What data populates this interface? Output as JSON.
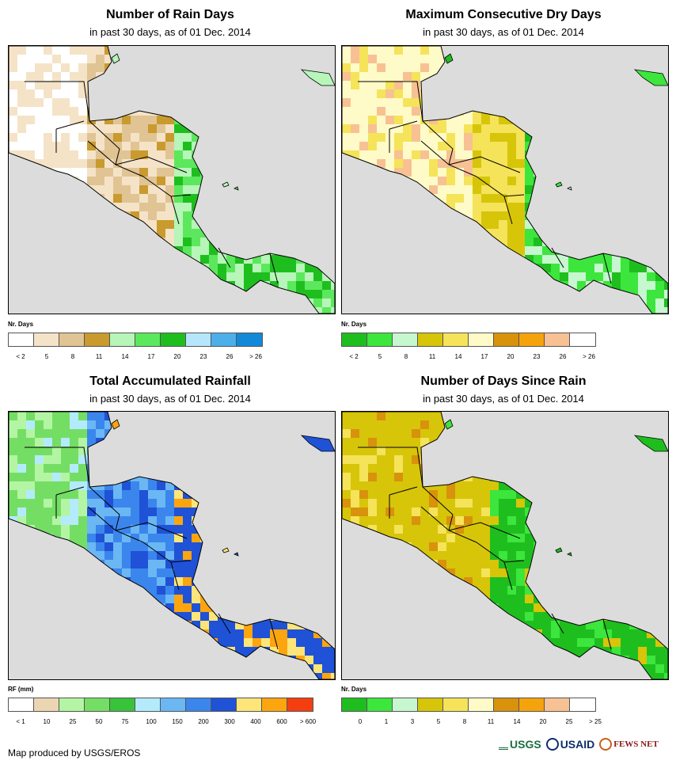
{
  "panels": [
    {
      "title": "Number of Rain Days",
      "subtitle": "in past 30 days, as of 01 Dec. 2014",
      "legend_title": "Nr. Days",
      "swatches": [
        "#ffffff",
        "#f5e3c8",
        "#e1c494",
        "#c99a2e",
        "#b7f5b9",
        "#5ce85c",
        "#1fbe1f",
        "#b6e6fb",
        "#4dafe9",
        "#1189d8"
      ],
      "labels": [
        "< 2",
        "5",
        "8",
        "11",
        "14",
        "17",
        "20",
        "23",
        "26",
        "> 26"
      ],
      "scheme": "rain_days"
    },
    {
      "title": "Maximum Consecutive Dry Days",
      "subtitle": "in past 30 days, as of 01 Dec. 2014",
      "legend_title": "Nr. Days",
      "swatches": [
        "#1fbe1f",
        "#3ce63c",
        "#c6f7cf",
        "#d7c50a",
        "#f5e35a",
        "#fffbc8",
        "#d8920c",
        "#f5a30c",
        "#f7c194",
        "#ffffff"
      ],
      "labels": [
        "< 2",
        "5",
        "8",
        "11",
        "14",
        "17",
        "20",
        "23",
        "26",
        "> 26"
      ],
      "scheme": "dry_days"
    },
    {
      "title": "Total Accumulated Rainfall",
      "subtitle": "in past 30 days, as of 01 Dec. 2014",
      "legend_title": "RF (mm)",
      "swatches": [
        "#ffffff",
        "#ecd5b2",
        "#b3f5a3",
        "#74de64",
        "#38c33a",
        "#b3ebfc",
        "#6ab7f4",
        "#3b86ec",
        "#1f52d6",
        "#fde57a",
        "#fda50f",
        "#f53e10"
      ],
      "labels": [
        "< 1",
        "10",
        "25",
        "50",
        "75",
        "100",
        "150",
        "200",
        "300",
        "400",
        "600",
        "> 600"
      ],
      "scheme": "rainfall"
    },
    {
      "title": "Number of Days Since Rain",
      "subtitle": "in past 30 days, as of 01 Dec. 2014",
      "legend_title": "Nr. Days",
      "swatches": [
        "#1fbe1f",
        "#3ce63c",
        "#c6f7cf",
        "#d7c50a",
        "#f5e35a",
        "#fffbc8",
        "#d8920c",
        "#f5a30c",
        "#f7c194",
        "#ffffff"
      ],
      "labels": [
        "0",
        "1",
        "3",
        "5",
        "8",
        "11",
        "14",
        "20",
        "25",
        "> 25"
      ],
      "scheme": "since_rain"
    }
  ],
  "footer": {
    "credit": "Map produced by USGS/EROS"
  },
  "logos": {
    "usgs": "USGS",
    "usaid": "USAID",
    "fews": "FEWS NET"
  },
  "colors": {
    "ocean": "#dcdcdc",
    "border": "#000000"
  }
}
